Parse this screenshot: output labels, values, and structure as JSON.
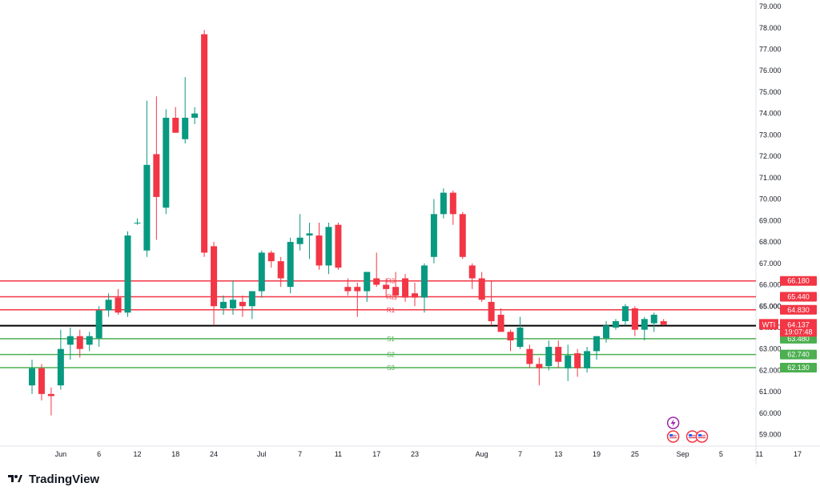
{
  "brand": "TradingView",
  "chart_data": {
    "type": "candlestick",
    "symbol": "WTI",
    "ylim": [
      58.5,
      79.3
    ],
    "y_ticks": [
      "59.000",
      "60.000",
      "61.000",
      "62.000",
      "63.000",
      "64.000",
      "65.000",
      "66.000",
      "67.000",
      "68.000",
      "69.000",
      "70.000",
      "71.000",
      "72.000",
      "73.000",
      "74.000",
      "75.000",
      "76.000",
      "77.000",
      "78.000",
      "79.000"
    ],
    "x_ticks": [
      {
        "label": "Jun",
        "i": 3
      },
      {
        "label": "6",
        "i": 7
      },
      {
        "label": "12",
        "i": 11
      },
      {
        "label": "18",
        "i": 15
      },
      {
        "label": "24",
        "i": 19
      },
      {
        "label": "Jul",
        "i": 24
      },
      {
        "label": "7",
        "i": 28
      },
      {
        "label": "11",
        "i": 32
      },
      {
        "label": "17",
        "i": 36
      },
      {
        "label": "23",
        "i": 40
      },
      {
        "label": "Aug",
        "i": 47
      },
      {
        "label": "7",
        "i": 51
      },
      {
        "label": "13",
        "i": 55
      },
      {
        "label": "19",
        "i": 59
      },
      {
        "label": "25",
        "i": 63
      },
      {
        "label": "Sep",
        "i": 68
      },
      {
        "label": "5",
        "i": 72
      },
      {
        "label": "11",
        "i": 76
      },
      {
        "label": "17",
        "i": 80
      }
    ],
    "candles": [
      {
        "i": 0,
        "o": 61.3,
        "h": 62.5,
        "l": 60.9,
        "c": 62.1
      },
      {
        "i": 1,
        "o": 62.1,
        "h": 62.3,
        "l": 60.6,
        "c": 60.9
      },
      {
        "i": 2,
        "o": 60.9,
        "h": 61.2,
        "l": 59.9,
        "c": 60.8
      },
      {
        "i": 3,
        "o": 61.3,
        "h": 63.9,
        "l": 61.1,
        "c": 63.0
      },
      {
        "i": 4,
        "o": 63.2,
        "h": 64.0,
        "l": 62.5,
        "c": 63.6
      },
      {
        "i": 5,
        "o": 63.6,
        "h": 63.9,
        "l": 62.6,
        "c": 63.0
      },
      {
        "i": 6,
        "o": 63.2,
        "h": 63.8,
        "l": 62.9,
        "c": 63.6
      },
      {
        "i": 7,
        "o": 63.5,
        "h": 65.0,
        "l": 63.1,
        "c": 64.8
      },
      {
        "i": 8,
        "o": 64.8,
        "h": 65.6,
        "l": 64.5,
        "c": 65.3
      },
      {
        "i": 9,
        "o": 65.4,
        "h": 65.8,
        "l": 64.6,
        "c": 64.7
      },
      {
        "i": 10,
        "o": 64.7,
        "h": 68.5,
        "l": 64.5,
        "c": 68.3
      },
      {
        "i": 11,
        "o": 68.9,
        "h": 69.1,
        "l": 68.8,
        "c": 68.9
      },
      {
        "i": 12,
        "o": 67.6,
        "h": 74.6,
        "l": 67.3,
        "c": 71.6
      },
      {
        "i": 13,
        "o": 72.1,
        "h": 74.8,
        "l": 68.1,
        "c": 70.1
      },
      {
        "i": 14,
        "o": 69.6,
        "h": 74.2,
        "l": 69.3,
        "c": 73.8
      },
      {
        "i": 15,
        "o": 73.8,
        "h": 74.3,
        "l": 73.1,
        "c": 73.1
      },
      {
        "i": 16,
        "o": 72.8,
        "h": 75.7,
        "l": 72.6,
        "c": 73.8
      },
      {
        "i": 17,
        "o": 73.8,
        "h": 74.3,
        "l": 73.5,
        "c": 74.0
      },
      {
        "i": 18,
        "o": 77.7,
        "h": 77.9,
        "l": 67.3,
        "c": 67.5
      },
      {
        "i": 19,
        "o": 67.8,
        "h": 68.0,
        "l": 64.1,
        "c": 65.0
      },
      {
        "i": 20,
        "o": 64.9,
        "h": 65.5,
        "l": 64.6,
        "c": 65.2
      },
      {
        "i": 21,
        "o": 64.9,
        "h": 66.2,
        "l": 64.6,
        "c": 65.3
      },
      {
        "i": 22,
        "o": 65.2,
        "h": 65.5,
        "l": 64.5,
        "c": 65.0
      },
      {
        "i": 23,
        "o": 65.0,
        "h": 65.6,
        "l": 64.4,
        "c": 65.7
      },
      {
        "i": 24,
        "o": 65.7,
        "h": 67.6,
        "l": 65.4,
        "c": 67.5
      },
      {
        "i": 25,
        "o": 67.5,
        "h": 67.6,
        "l": 66.8,
        "c": 67.1
      },
      {
        "i": 26,
        "o": 67.1,
        "h": 67.3,
        "l": 65.9,
        "c": 66.3
      },
      {
        "i": 27,
        "o": 65.9,
        "h": 68.2,
        "l": 65.6,
        "c": 68.0
      },
      {
        "i": 28,
        "o": 67.9,
        "h": 69.3,
        "l": 67.6,
        "c": 68.2
      },
      {
        "i": 29,
        "o": 68.3,
        "h": 68.9,
        "l": 67.2,
        "c": 68.4
      },
      {
        "i": 30,
        "o": 68.3,
        "h": 68.9,
        "l": 66.7,
        "c": 66.9
      },
      {
        "i": 31,
        "o": 66.9,
        "h": 68.9,
        "l": 66.5,
        "c": 68.7
      },
      {
        "i": 32,
        "o": 68.8,
        "h": 68.9,
        "l": 66.7,
        "c": 66.8
      },
      {
        "i": 33,
        "o": 65.9,
        "h": 66.3,
        "l": 65.5,
        "c": 65.7
      },
      {
        "i": 34,
        "o": 65.9,
        "h": 66.1,
        "l": 64.5,
        "c": 65.7
      },
      {
        "i": 35,
        "o": 65.7,
        "h": 66.4,
        "l": 65.2,
        "c": 66.6
      },
      {
        "i": 36,
        "o": 66.3,
        "h": 67.5,
        "l": 65.9,
        "c": 66.0
      },
      {
        "i": 37,
        "o": 66.0,
        "h": 66.3,
        "l": 65.4,
        "c": 65.8
      },
      {
        "i": 38,
        "o": 65.9,
        "h": 66.6,
        "l": 65.3,
        "c": 65.5
      },
      {
        "i": 39,
        "o": 66.3,
        "h": 66.5,
        "l": 65.2,
        "c": 65.4
      },
      {
        "i": 40,
        "o": 65.6,
        "h": 66.1,
        "l": 65.0,
        "c": 65.4
      },
      {
        "i": 41,
        "o": 65.4,
        "h": 67.0,
        "l": 64.7,
        "c": 66.9
      },
      {
        "i": 42,
        "o": 67.3,
        "h": 70.0,
        "l": 67.0,
        "c": 69.3
      },
      {
        "i": 43,
        "o": 69.3,
        "h": 70.5,
        "l": 69.1,
        "c": 70.3
      },
      {
        "i": 44,
        "o": 70.3,
        "h": 70.4,
        "l": 68.8,
        "c": 69.3
      },
      {
        "i": 45,
        "o": 69.3,
        "h": 69.4,
        "l": 67.2,
        "c": 67.3
      },
      {
        "i": 46,
        "o": 66.9,
        "h": 67.0,
        "l": 65.8,
        "c": 66.3
      },
      {
        "i": 47,
        "o": 66.3,
        "h": 66.6,
        "l": 65.2,
        "c": 65.3
      },
      {
        "i": 48,
        "o": 65.2,
        "h": 66.2,
        "l": 64.1,
        "c": 64.3
      },
      {
        "i": 49,
        "o": 64.6,
        "h": 64.9,
        "l": 63.9,
        "c": 63.8
      },
      {
        "i": 50,
        "o": 63.8,
        "h": 63.9,
        "l": 62.9,
        "c": 63.4
      },
      {
        "i": 51,
        "o": 63.1,
        "h": 64.5,
        "l": 63.0,
        "c": 64.0
      },
      {
        "i": 52,
        "o": 63.0,
        "h": 63.2,
        "l": 62.1,
        "c": 62.3
      },
      {
        "i": 53,
        "o": 62.3,
        "h": 62.6,
        "l": 61.3,
        "c": 62.1
      },
      {
        "i": 54,
        "o": 62.2,
        "h": 63.4,
        "l": 62.0,
        "c": 63.1
      },
      {
        "i": 55,
        "o": 63.1,
        "h": 63.4,
        "l": 62.1,
        "c": 62.4
      },
      {
        "i": 56,
        "o": 62.1,
        "h": 63.2,
        "l": 61.5,
        "c": 62.7
      },
      {
        "i": 57,
        "o": 62.8,
        "h": 63.0,
        "l": 61.7,
        "c": 62.1
      },
      {
        "i": 58,
        "o": 62.1,
        "h": 63.1,
        "l": 61.9,
        "c": 62.9
      },
      {
        "i": 59,
        "o": 62.9,
        "h": 63.4,
        "l": 62.5,
        "c": 63.6
      },
      {
        "i": 60,
        "o": 63.5,
        "h": 64.3,
        "l": 63.3,
        "c": 64.1
      },
      {
        "i": 61,
        "o": 64.0,
        "h": 64.4,
        "l": 63.9,
        "c": 64.3
      },
      {
        "i": 62,
        "o": 64.3,
        "h": 65.1,
        "l": 64.1,
        "c": 65.0
      },
      {
        "i": 63,
        "o": 64.9,
        "h": 65.0,
        "l": 63.6,
        "c": 63.9
      },
      {
        "i": 64,
        "o": 63.9,
        "h": 64.5,
        "l": 63.4,
        "c": 64.4
      },
      {
        "i": 65,
        "o": 64.2,
        "h": 64.7,
        "l": 63.8,
        "c": 64.6
      },
      {
        "i": 66,
        "o": 64.3,
        "h": 64.4,
        "l": 64.1,
        "c": 64.137
      }
    ],
    "levels": [
      {
        "name": "R3",
        "value": 66.18,
        "label": "66.180",
        "color": "#f23645",
        "kind": "resistance"
      },
      {
        "name": "R2",
        "value": 65.44,
        "label": "65.440",
        "color": "#f23645",
        "kind": "resistance"
      },
      {
        "name": "R1",
        "value": 64.83,
        "label": "64.830",
        "color": "#f23645",
        "kind": "resistance"
      },
      {
        "name": "P",
        "value": 64.09,
        "label": "64.090",
        "color": "#000000",
        "kind": "pivot"
      },
      {
        "name": "S1",
        "value": 63.48,
        "label": "63.480",
        "color": "#4caf50",
        "kind": "support"
      },
      {
        "name": "S2",
        "value": 62.74,
        "label": "62.740",
        "color": "#4caf50",
        "kind": "support"
      },
      {
        "name": "S3",
        "value": 62.13,
        "label": "62.130",
        "color": "#4caf50",
        "kind": "support"
      }
    ],
    "last_price": {
      "symbol": "WTI",
      "value": 64.137,
      "label": "64.137",
      "countdown": "19:07:48",
      "color": "#f23645"
    },
    "hidden_tick": "65.000",
    "event_icons": [
      {
        "name": "lightning-event-icon",
        "i": 67,
        "row": 0,
        "color": "#9c27b0"
      },
      {
        "name": "us-flag-event-icon",
        "i": 67,
        "row": 1,
        "color": "#f23645"
      },
      {
        "name": "us-flag-event-icon",
        "i": 69,
        "row": 1,
        "color": "#f23645"
      },
      {
        "name": "us-flag-event-icon",
        "i": 70,
        "row": 1,
        "color": "#f23645"
      }
    ],
    "colors": {
      "up": "#089981",
      "down": "#f23645",
      "grid": "#f0f3fa",
      "text": "#131722"
    },
    "grid": true
  }
}
